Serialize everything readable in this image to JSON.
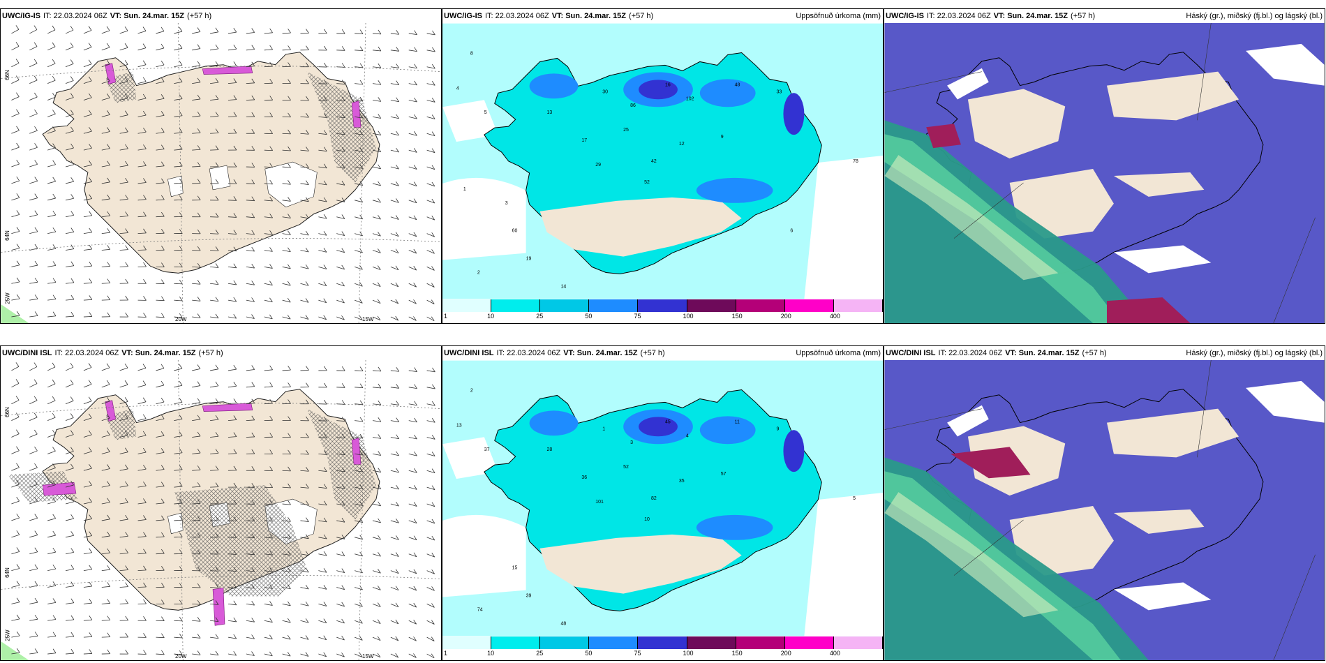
{
  "panels": [
    {
      "id": "p1",
      "model": "UWC/IG-IS",
      "it_label": "IT:",
      "it": "22.03.2024 06Z",
      "vt_label": "VT:",
      "vt": "Sun. 24.mar. 15Z",
      "lead": "(+57 h)",
      "right_title": ""
    },
    {
      "id": "p2",
      "model": "UWC/IG-IS",
      "it_label": "IT:",
      "it": "22.03.2024 06Z",
      "vt_label": "VT:",
      "vt": "Sun. 24.mar. 15Z",
      "lead": "(+57 h)",
      "right_title": "Uppsöfnuð úrkoma (mm)"
    },
    {
      "id": "p3",
      "model": "UWC/IG-IS",
      "it_label": "IT:",
      "it": "22.03.2024 06Z",
      "vt_label": "VT:",
      "vt": "Sun. 24.mar. 15Z",
      "lead": "(+57 h)",
      "right_title": "Háský (gr.), miðský (fj.bl.) og lágský (bl.)"
    },
    {
      "id": "p4",
      "model": "UWC/DINI ISL",
      "it_label": "IT:",
      "it": "22.03.2024 06Z",
      "vt_label": "VT:",
      "vt": "Sun. 24.mar. 15Z",
      "lead": "(+57 h)",
      "right_title": ""
    },
    {
      "id": "p5",
      "model": "UWC/DINI ISL",
      "it_label": "IT:",
      "it": "22.03.2024 06Z",
      "vt_label": "VT:",
      "vt": "Sun. 24.mar. 15Z",
      "lead": "(+57 h)",
      "right_title": "Uppsöfnuð úrkoma (mm)"
    },
    {
      "id": "p6",
      "model": "UWC/DINI ISL",
      "it_label": "IT:",
      "it": "22.03.2024 06Z",
      "vt_label": "VT:",
      "vt": "Sun. 24.mar. 15Z",
      "lead": "(+57 h)",
      "right_title": "Háský (gr.), miðský (fj.bl.) og lágský (bl.)"
    }
  ],
  "axis_labels": {
    "lat66": "66N",
    "lat64": "64N",
    "lon25": "25W",
    "lon20": "20W",
    "lon15": "15W"
  },
  "colorbar": {
    "labels": [
      "1",
      "10",
      "25",
      "50",
      "75",
      "100",
      "150",
      "200",
      "400"
    ],
    "colors": [
      "#e0ffff",
      "#00eded",
      "#00c8e6",
      "#1e8cff",
      "#3232d2",
      "#6e0a5a",
      "#b40078",
      "#ff00c8",
      "#f5b4f5"
    ]
  },
  "colors": {
    "land": "#f2e6d5",
    "snow_bg": "#b2fdfd",
    "cloud_mid": "#5858c8",
    "cloud_high": "#2a9a8a",
    "cloud_low": "#ffffff"
  },
  "precip_values_top": [
    "8",
    "4",
    "5",
    "13",
    "17",
    "29",
    "42",
    "25",
    "12",
    "9",
    "16",
    "48",
    "33",
    "102",
    "86",
    "78",
    "30",
    "52",
    "60",
    "19",
    "14",
    "2",
    "3",
    "1",
    "6"
  ],
  "precip_values_bottom": [
    "2",
    "13",
    "37",
    "28",
    "36",
    "101",
    "82",
    "52",
    "35",
    "57",
    "45",
    "11",
    "9",
    "4",
    "3",
    "5",
    "1",
    "10",
    "15",
    "39",
    "48",
    "74"
  ]
}
